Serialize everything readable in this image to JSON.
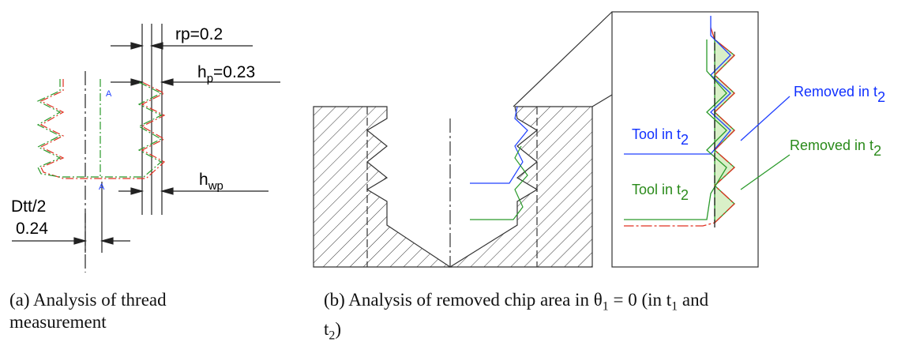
{
  "figure_a": {
    "labels": {
      "rp": "rp=0.2",
      "hp_base": "h",
      "hp_sub": "p",
      "hp_rest": "=0.23",
      "section_top": "A",
      "section_bottom": "A",
      "hwp_base": "h",
      "hwp_sub": "wp",
      "dtt": "Dtt/2",
      "dtt_value": "0.24"
    },
    "caption": [
      "(a) Analysis of thread",
      "measurement"
    ]
  },
  "figure_b": {
    "labels": {
      "removed_blue": "Removed in t",
      "removed_blue_sub": "2",
      "tool_blue": "Tool in t",
      "tool_blue_sub": "2",
      "removed_green": "Removed in t",
      "removed_green_sub": "2",
      "tool_green": "Tool in t",
      "tool_green_sub": "2"
    },
    "caption": {
      "line1": [
        "(b) Analysis of removed chip area in θ",
        "1",
        " = 0 (in t",
        "1",
        " and"
      ],
      "line2": [
        "t",
        "2",
        ")"
      ]
    }
  }
}
